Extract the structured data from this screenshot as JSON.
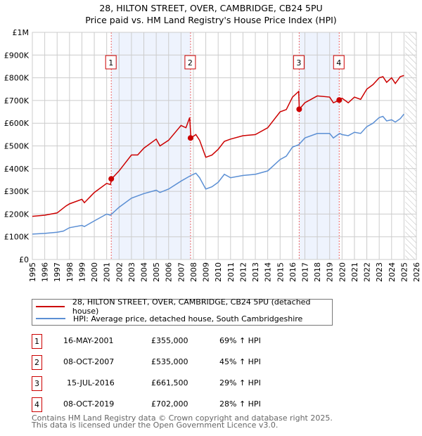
{
  "title": "28, HILTON STREET, OVER, CAMBRIDGE, CB24 5PU",
  "subtitle": "Price paid vs. HM Land Registry's House Price Index (HPI)",
  "colors": {
    "price": "#cc0000",
    "hpi": "#5b8fd4",
    "shade": "#eef3fd"
  },
  "chart_data": {
    "type": "line",
    "title": "28, HILTON STREET, OVER, CAMBRIDGE, CB24 5PU",
    "xlim": [
      1995,
      2026
    ],
    "ylim": [
      0,
      1000000
    ],
    "x_ticks": [
      "1995",
      "1996",
      "1997",
      "1998",
      "1999",
      "2000",
      "2001",
      "2002",
      "2003",
      "2004",
      "2005",
      "2006",
      "2007",
      "2008",
      "2009",
      "2010",
      "2011",
      "2012",
      "2013",
      "2014",
      "2015",
      "2016",
      "2017",
      "2018",
      "2019",
      "2020",
      "2021",
      "2022",
      "2023",
      "2024",
      "2025",
      "2026"
    ],
    "y_ticks": [
      {
        "v": 0,
        "l": "£0"
      },
      {
        "v": 100000,
        "l": "£100K"
      },
      {
        "v": 200000,
        "l": "£200K"
      },
      {
        "v": 300000,
        "l": "£300K"
      },
      {
        "v": 400000,
        "l": "£400K"
      },
      {
        "v": 500000,
        "l": "£500K"
      },
      {
        "v": 600000,
        "l": "£600K"
      },
      {
        "v": 700000,
        "l": "£700K"
      },
      {
        "v": 800000,
        "l": "£800K"
      },
      {
        "v": 900000,
        "l": "£900K"
      },
      {
        "v": 1000000,
        "l": "£1M"
      }
    ],
    "shaded_ranges": [
      [
        2001.37,
        2007.77
      ],
      [
        2016.54,
        2019.77
      ]
    ],
    "forecast_from": 2025.1,
    "series": [
      {
        "name": "28, HILTON STREET, OVER, CAMBRIDGE, CB24 5PU (detached house)",
        "x": [
          1995,
          1996,
          1997,
          1997.7,
          1998,
          1999,
          1999.2,
          2000,
          2001,
          2001.3,
          2001.4,
          2002,
          2003,
          2003.5,
          2004,
          2005,
          2005.3,
          2006,
          2007,
          2007.4,
          2007.7,
          2007.8,
          2008.2,
          2008.5,
          2009,
          2009.5,
          2010,
          2010.5,
          2011,
          2012,
          2013,
          2014,
          2015,
          2015.5,
          2016,
          2016.5,
          2016.55,
          2017,
          2018,
          2019,
          2019.3,
          2019.8,
          2020,
          2020.5,
          2021,
          2021.5,
          2022,
          2022.5,
          2023,
          2023.3,
          2023.6,
          2024,
          2024.3,
          2024.7,
          2025
        ],
        "values": [
          190,
          195,
          205,
          235,
          245,
          265,
          250,
          295,
          335,
          330,
          355,
          390,
          460,
          460,
          490,
          530,
          500,
          525,
          590,
          580,
          625,
          535,
          550,
          525,
          450,
          460,
          485,
          520,
          530,
          545,
          550,
          580,
          650,
          660,
          715,
          740,
          661.5,
          690,
          720,
          715,
          690,
          702,
          710,
          690,
          715,
          705,
          750,
          770,
          800,
          805,
          780,
          800,
          775,
          805,
          810
        ]
      },
      {
        "name": "HPI: Average price, detached house, South Cambridgeshire",
        "x": [
          1995,
          1996,
          1997,
          1997.5,
          1998,
          1999,
          1999.2,
          2000,
          2001,
          2001.3,
          2002,
          2003,
          2004,
          2005,
          2005.3,
          2006,
          2007,
          2007.8,
          2008.2,
          2008.5,
          2009,
          2009.5,
          2010,
          2010.5,
          2011,
          2012,
          2013,
          2014,
          2015,
          2015.5,
          2016,
          2016.5,
          2017,
          2018,
          2019,
          2019.3,
          2019.8,
          2020,
          2020.5,
          2021,
          2021.5,
          2022,
          2022.5,
          2023,
          2023.3,
          2023.6,
          2024,
          2024.3,
          2024.7,
          2025
        ],
        "values": [
          112,
          115,
          120,
          125,
          140,
          150,
          145,
          170,
          200,
          195,
          230,
          270,
          290,
          305,
          295,
          310,
          345,
          370,
          380,
          360,
          310,
          320,
          340,
          375,
          360,
          370,
          375,
          390,
          440,
          455,
          495,
          505,
          535,
          555,
          555,
          535,
          555,
          550,
          545,
          560,
          555,
          585,
          600,
          625,
          630,
          610,
          615,
          605,
          620,
          640
        ]
      }
    ],
    "sales": [
      {
        "label": "1",
        "x": 2001.37,
        "value": 355000
      },
      {
        "label": "2",
        "x": 2007.77,
        "value": 535000
      },
      {
        "label": "3",
        "x": 2016.54,
        "value": 661500
      },
      {
        "label": "4",
        "x": 2019.77,
        "value": 702000
      }
    ]
  },
  "legend": [
    "28, HILTON STREET, OVER, CAMBRIDGE, CB24 5PU (detached house)",
    "HPI: Average price, detached house, South Cambridgeshire"
  ],
  "transactions": [
    {
      "num": "1",
      "date": "16-MAY-2001",
      "price": "£355,000",
      "hpi": "69% ↑ HPI"
    },
    {
      "num": "2",
      "date": "08-OCT-2007",
      "price": "£535,000",
      "hpi": "45% ↑ HPI"
    },
    {
      "num": "3",
      "date": "15-JUL-2016",
      "price": "£661,500",
      "hpi": "29% ↑ HPI"
    },
    {
      "num": "4",
      "date": "08-OCT-2019",
      "price": "£702,000",
      "hpi": "28% ↑ HPI"
    }
  ],
  "footer": [
    "Contains HM Land Registry data © Crown copyright and database right 2025.",
    "This data is licensed under the Open Government Licence v3.0."
  ]
}
